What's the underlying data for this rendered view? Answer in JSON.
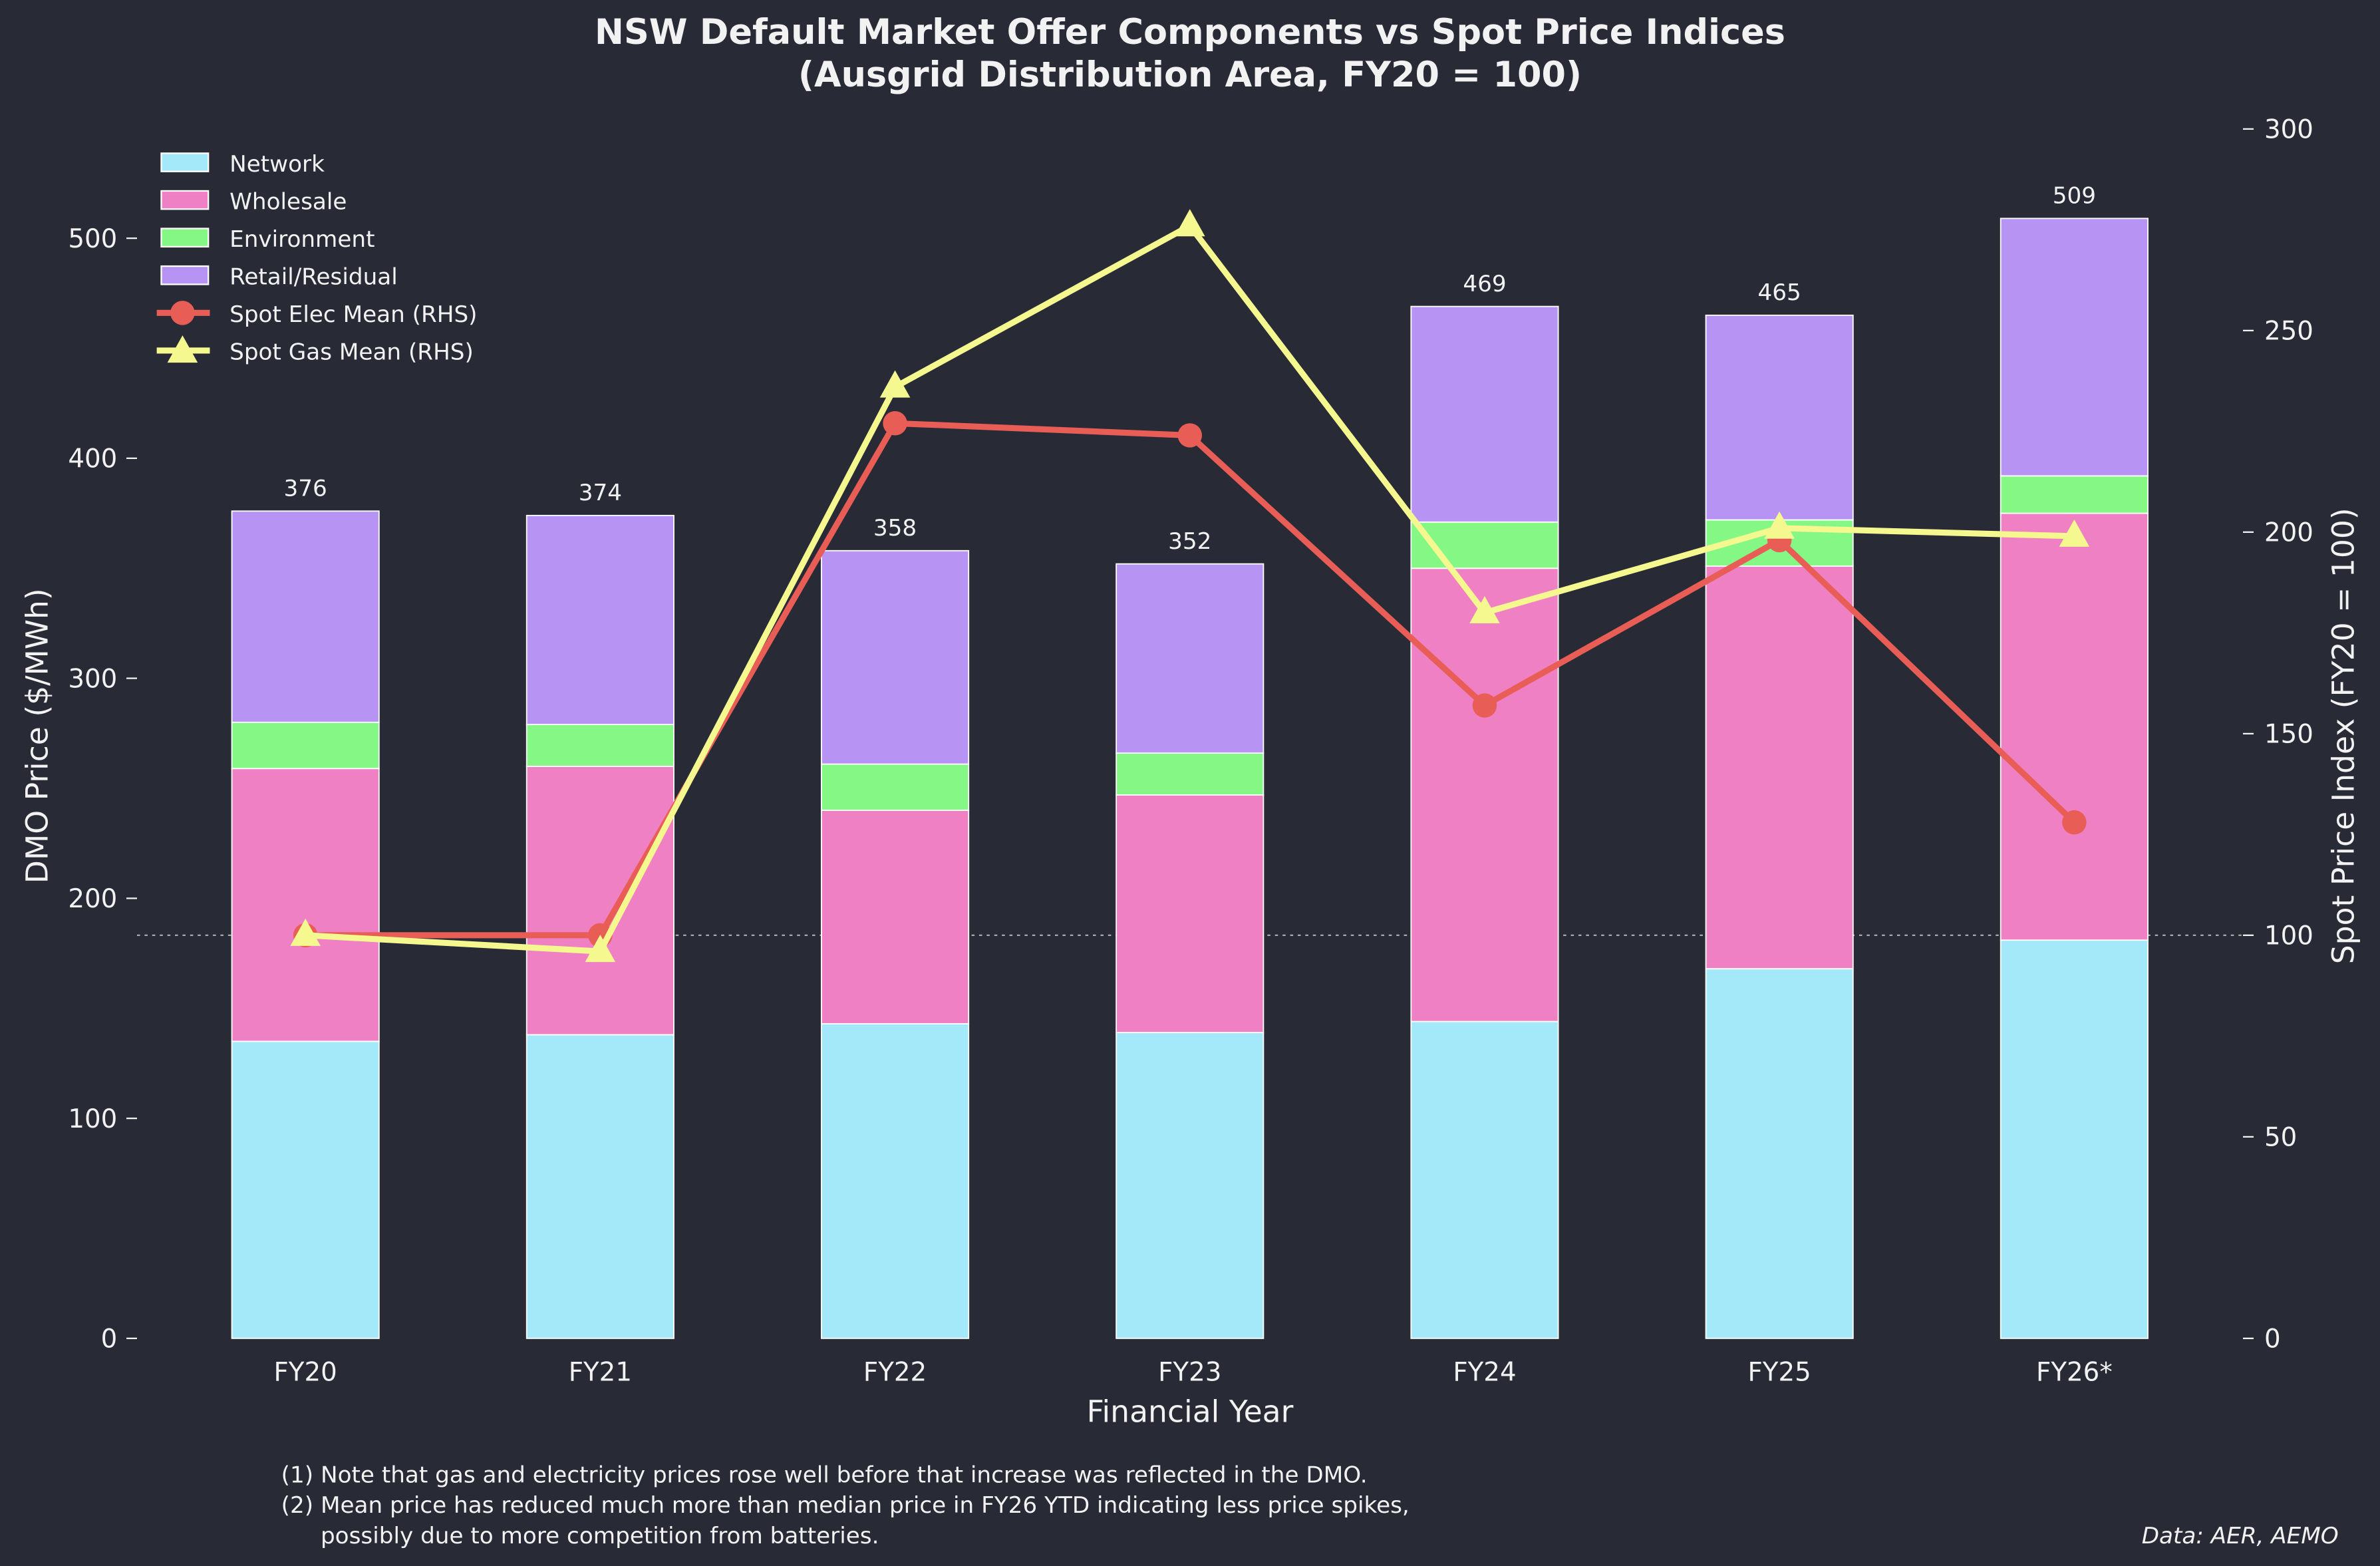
{
  "chart_data": {
    "type": "bar",
    "title": "NSW Default Market Offer Components vs Spot Price Indices",
    "subtitle": "(Ausgrid Distribution Area, FY20 = 100)",
    "xlabel": "Financial Year",
    "ylabel": "DMO Price ($/MWh)",
    "y2label": "Spot Price Index (FY20 = 100)",
    "categories": [
      "FY20",
      "FY21",
      "FY22",
      "FY23",
      "FY24",
      "FY25",
      "FY26*"
    ],
    "ylim": [
      0,
      540
    ],
    "yticks": [
      0,
      100,
      200,
      300,
      400,
      500
    ],
    "y2lim": [
      0,
      300
    ],
    "y2ticks": [
      0,
      50,
      100,
      150,
      200,
      250,
      300
    ],
    "reference_line_y2": 100,
    "stacked_series": [
      {
        "name": "Network",
        "color": "#a4e9f9",
        "values": [
          135,
          138,
          143,
          139,
          144,
          168,
          181
        ]
      },
      {
        "name": "Wholesale",
        "color": "#f080c4",
        "values": [
          124,
          122,
          97,
          108,
          206,
          183,
          194
        ]
      },
      {
        "name": "Environment",
        "color": "#85f785",
        "values": [
          21,
          19,
          21,
          19,
          21,
          21,
          17
        ]
      },
      {
        "name": "Retail/Residual",
        "color": "#b794f4",
        "values": [
          96,
          95,
          97,
          86,
          98,
          93,
          117
        ]
      }
    ],
    "totals": [
      376,
      374,
      358,
      352,
      469,
      465,
      509
    ],
    "line_series": [
      {
        "name": "Spot Elec Mean (RHS)",
        "color": "#e85d55",
        "marker": "circle",
        "values": [
          100,
          100,
          227,
          224,
          157,
          198,
          128
        ]
      },
      {
        "name": "Spot Gas Mean (RHS)",
        "color": "#f4f88f",
        "marker": "triangle",
        "values": [
          100,
          96,
          236,
          276,
          180,
          201,
          199
        ]
      }
    ],
    "legend_position": "top-left",
    "grid": false
  },
  "notes": [
    "(1) Note that gas and electricity prices rose well before that increase was reflected in the DMO.",
    "(2) Mean price has reduced much more than median price in FY26 YTD indicating less price spikes,",
    "possibly due to more competition from batteries."
  ],
  "source": "Data: AER, AEMO"
}
